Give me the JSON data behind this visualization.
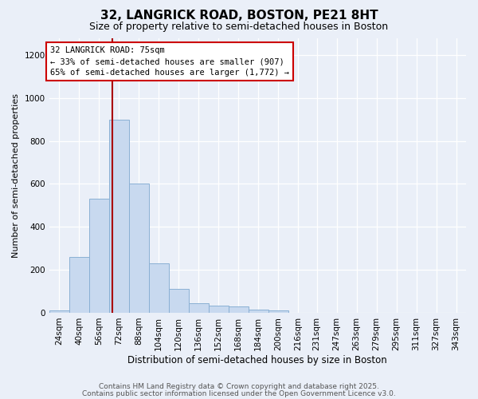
{
  "title1": "32, LANGRICK ROAD, BOSTON, PE21 8HT",
  "title2": "Size of property relative to semi-detached houses in Boston",
  "xlabel": "Distribution of semi-detached houses by size in Boston",
  "ylabel": "Number of semi-detached properties",
  "bin_labels": [
    "24sqm",
    "40sqm",
    "56sqm",
    "72sqm",
    "88sqm",
    "104sqm",
    "120sqm",
    "136sqm",
    "152sqm",
    "168sqm",
    "184sqm",
    "200sqm",
    "216sqm",
    "231sqm",
    "247sqm",
    "263sqm",
    "279sqm",
    "295sqm",
    "311sqm",
    "327sqm",
    "343sqm"
  ],
  "bin_left_edges": [
    24,
    40,
    56,
    72,
    88,
    104,
    120,
    136,
    152,
    168,
    184,
    200,
    216,
    231,
    247,
    263,
    279,
    295,
    311,
    327,
    343
  ],
  "bin_width": 16,
  "bar_heights": [
    10,
    260,
    530,
    900,
    600,
    230,
    110,
    45,
    35,
    30,
    15,
    10,
    0,
    0,
    0,
    0,
    0,
    0,
    0,
    0,
    0
  ],
  "bar_color": "#c8d9ef",
  "bar_edge_color": "#8ab0d4",
  "property_sqm": 75,
  "property_line_color": "#aa0000",
  "annotation_title": "32 LANGRICK ROAD: 75sqm",
  "annotation_line1": "← 33% of semi-detached houses are smaller (907)",
  "annotation_line2": "65% of semi-detached houses are larger (1,772) →",
  "annotation_box_facecolor": "#ffffff",
  "annotation_box_edgecolor": "#cc0000",
  "ylim": [
    0,
    1280
  ],
  "yticks": [
    0,
    200,
    400,
    600,
    800,
    1000,
    1200
  ],
  "footer1": "Contains HM Land Registry data © Crown copyright and database right 2025.",
  "footer2": "Contains public sector information licensed under the Open Government Licence v3.0.",
  "bg_color": "#eaeff8",
  "grid_color": "#ffffff",
  "title1_fontsize": 11,
  "title2_fontsize": 9,
  "ylabel_fontsize": 8,
  "xlabel_fontsize": 8.5,
  "tick_fontsize": 7.5,
  "footer_fontsize": 6.5
}
